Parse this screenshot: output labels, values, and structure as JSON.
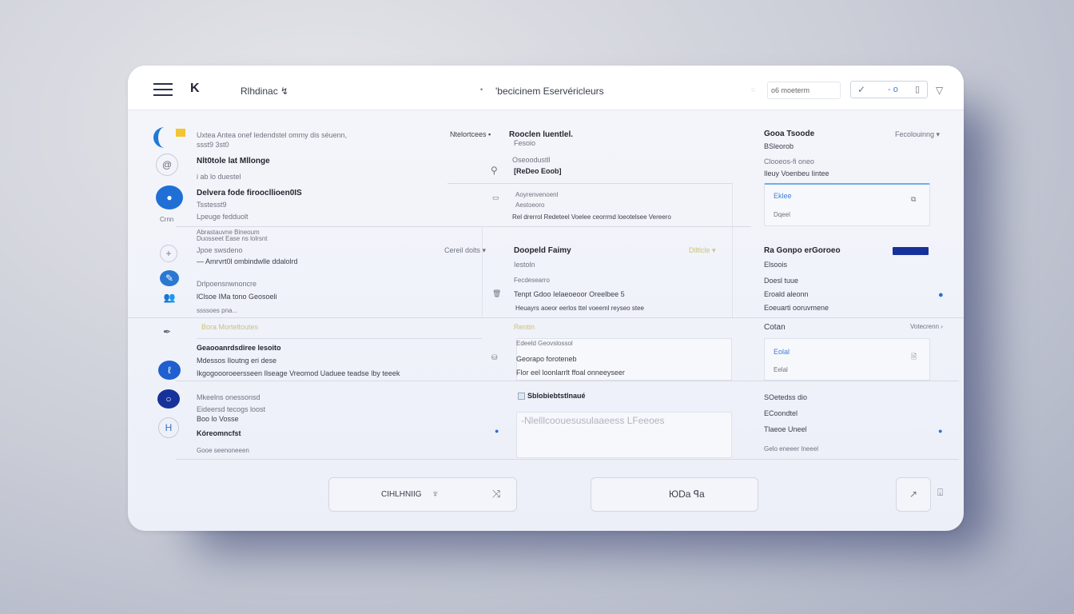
{
  "header": {
    "app_name": "Rlhdinac ↯",
    "title": "'becicinem Eservéricleurs",
    "search_value": "o6 moeterm",
    "toolbar_value": "- o"
  },
  "left": [
    "Uxtea Antea onef ledendstel ommy dis séuenn,",
    "ssst9 3st0",
    "Nlt0tole lat Mllonge",
    "i ab lo duestel",
    "Delvera fode firoocllioen0IS",
    "Tsstesst9",
    "Lpeuge fedduolt",
    "Abrastauvne Bineoum",
    "Duosseet Ease ns lolrsnt",
    "Jpoe swsdeno",
    "— Amrvrt0l ombindwlle ddalolrd",
    "Drlpoensnwnoncre",
    "lClsoe IMa tono Geosoeli",
    "ssssoes pna...",
    "Bora Morteltoutes",
    "Geaooanrdsdiree lesoito",
    "Mdessos Iloutng eri dese",
    "Ikgogoooroeersseen Ilseage Vreomod Uaduee teadse lby teeek",
    "Mkeelns onessonsd",
    "Eideersd tecogs loost",
    "Boo lo Vosse",
    "Kóreomncfst",
    "Gooe seenoneeen",
    "Crnn"
  ],
  "middle": [
    "Ntelortcees ▪",
    "Rooclen luentlel.",
    "Fesoio",
    "Oseoodustll",
    "[ReDeo Eoob]",
    "Aoyrenvenoenl",
    "Aestoeoro",
    "Rel drerrol Redeteel Voelee ceorrmd loeotelsee Vereero",
    "Cereil dolts ▾",
    "Doopeld Faimy",
    "Dlltlcle ▾",
    "Iestoln",
    "Fecdesearro",
    "Tenpt Gdoo Ielaeoeoor Oreelbee 5",
    "Heuayrs aoeor eerlos ttel voeeml reyseo stee",
    "Rentin",
    "Edeeld Geovslossol",
    "Georapo foroteneb",
    "Flor eel loonlarrlt ffoal onneeyseer",
    "Sblobiebtstlnaué",
    "-Nlelllcoouesusulaaeess LFeeoes"
  ],
  "right": [
    "Gooa Tsoode",
    "Fecolouinng ▾",
    "BSleorob",
    "Clooeos-fi oneo",
    "Ileuy Voenbeu Iintee",
    "Eklee",
    "Dqeel",
    "Ra Gonpo erGoroeo",
    "Elsoois",
    "Doesl tuue",
    "Eroald aleonn",
    "Eoeuarti ooruvmene",
    "Cotan",
    "Votecrenn ›",
    "Eolal",
    "Eelal",
    "SOetedss dio",
    "ECoondtel",
    "Tlaeoe Uneel",
    "Gelo eneeer Ineeel"
  ],
  "footer": {
    "primary_label": "CIHLHNIIG",
    "secondary_label": "ЮDa ꟼa",
    "next_label": "↗"
  },
  "colors": {
    "accent": "#1f5fd0",
    "dark_accent": "#16329a",
    "highlight": "#c9c27a"
  }
}
